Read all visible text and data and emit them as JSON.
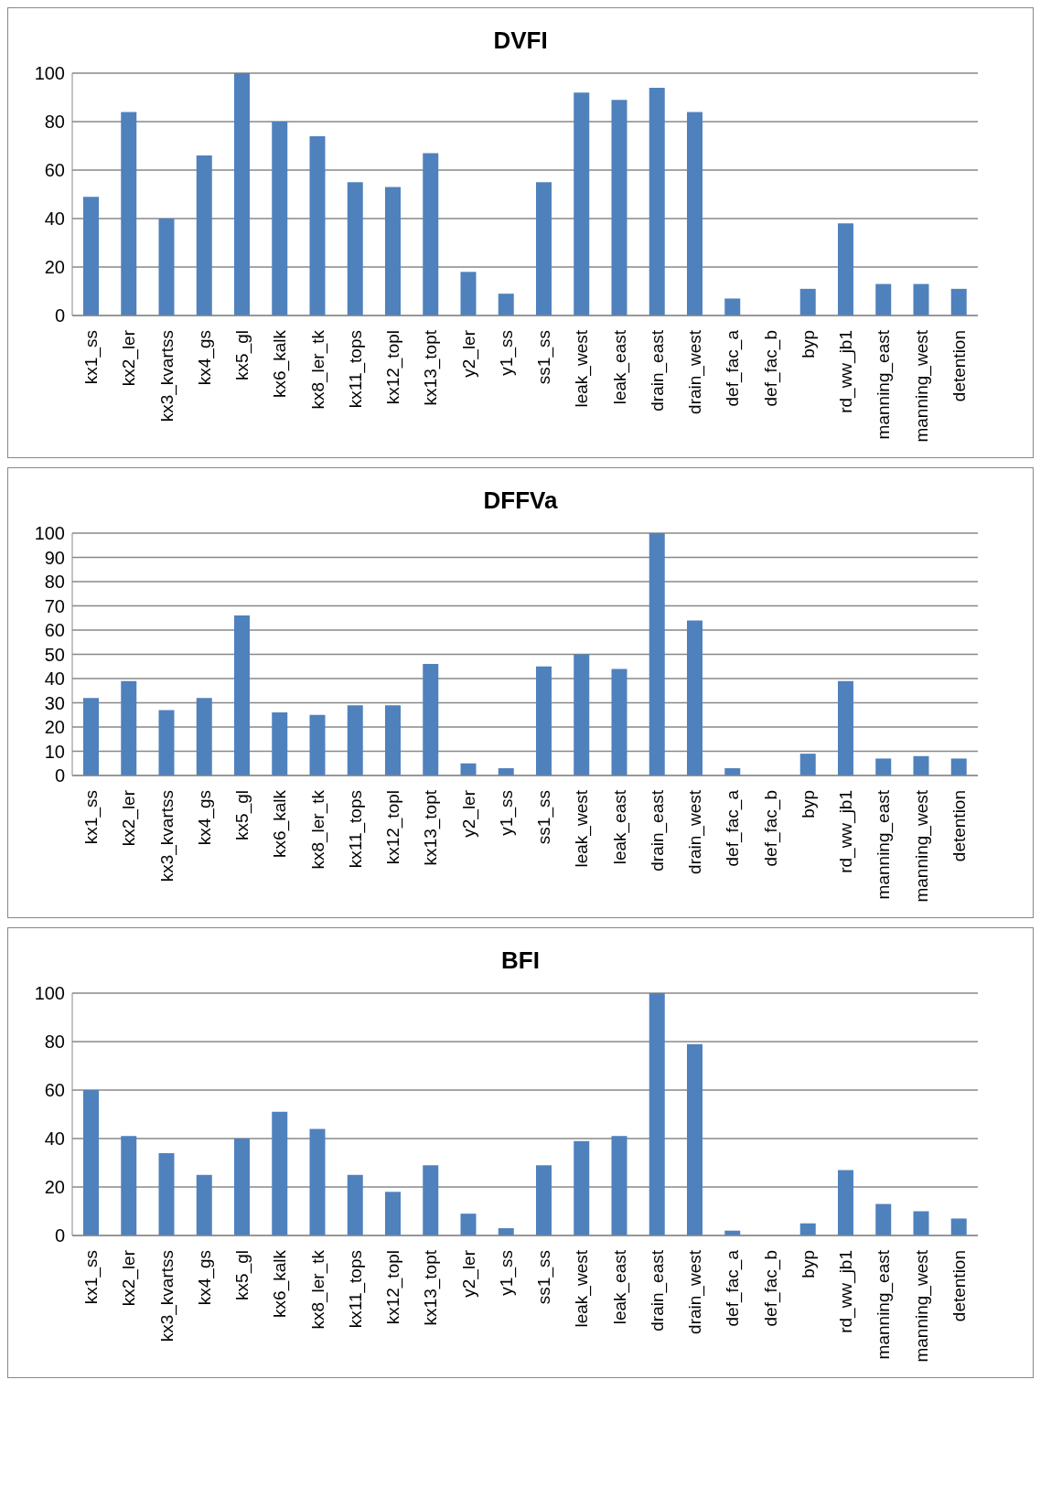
{
  "chart_data": [
    {
      "type": "bar",
      "title": "DVFI",
      "categories": [
        "kx1_ss",
        "kx2_ler",
        "kx3_kvartss",
        "kx4_gs",
        "kx5_gl",
        "kx6_kalk",
        "kx8_ler_tk",
        "kx11_tops",
        "kx12_topl",
        "kx13_topt",
        "y2_ler",
        "y1_ss",
        "ss1_ss",
        "leak_west",
        "leak_east",
        "drain_east",
        "drain_west",
        "def_fac_a",
        "def_fac_b",
        "byp",
        "rd_ww_jb1",
        "manning_east",
        "manning_west",
        "detention"
      ],
      "values": [
        49,
        84,
        40,
        66,
        100,
        80,
        74,
        55,
        53,
        67,
        18,
        9,
        55,
        92,
        89,
        94,
        84,
        7,
        0,
        11,
        38,
        13,
        13,
        11
      ],
      "color": "#4f81bd",
      "ylim": [
        0,
        100
      ],
      "yticks": [
        0,
        20,
        40,
        60,
        80,
        100
      ],
      "grid": "y"
    },
    {
      "type": "bar",
      "title": "DFFVa",
      "categories": [
        "kx1_ss",
        "kx2_ler",
        "kx3_kvartss",
        "kx4_gs",
        "kx5_gl",
        "kx6_kalk",
        "kx8_ler_tk",
        "kx11_tops",
        "kx12_topl",
        "kx13_topt",
        "y2_ler",
        "y1_ss",
        "ss1_ss",
        "leak_west",
        "leak_east",
        "drain_east",
        "drain_west",
        "def_fac_a",
        "def_fac_b",
        "byp",
        "rd_ww_jb1",
        "manning_east",
        "manning_west",
        "detention"
      ],
      "values": [
        32,
        39,
        27,
        32,
        66,
        26,
        25,
        29,
        29,
        46,
        5,
        3,
        45,
        50,
        44,
        100,
        64,
        3,
        0,
        9,
        39,
        7,
        8,
        7
      ],
      "color": "#4f81bd",
      "ylim": [
        0,
        100
      ],
      "yticks": [
        0,
        10,
        20,
        30,
        40,
        50,
        60,
        70,
        80,
        90,
        100
      ],
      "grid": "y"
    },
    {
      "type": "bar",
      "title": "BFI",
      "categories": [
        "kx1_ss",
        "kx2_ler",
        "kx3_kvartss",
        "kx4_gs",
        "kx5_gl",
        "kx6_kalk",
        "kx8_ler_tk",
        "kx11_tops",
        "kx12_topl",
        "kx13_topt",
        "y2_ler",
        "y1_ss",
        "ss1_ss",
        "leak_west",
        "leak_east",
        "drain_east",
        "drain_west",
        "def_fac_a",
        "def_fac_b",
        "byp",
        "rd_ww_jb1",
        "manning_east",
        "manning_west",
        "detention"
      ],
      "values": [
        60,
        41,
        34,
        25,
        40,
        51,
        44,
        25,
        18,
        29,
        9,
        3,
        29,
        39,
        41,
        100,
        79,
        2,
        0,
        5,
        27,
        13,
        10,
        7
      ],
      "color": "#4f81bd",
      "ylim": [
        0,
        100
      ],
      "yticks": [
        0,
        20,
        40,
        60,
        80,
        100
      ],
      "grid": "y"
    }
  ]
}
